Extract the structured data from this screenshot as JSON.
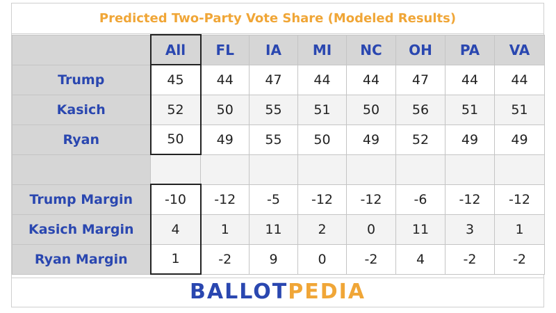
{
  "chart_data": {
    "type": "table",
    "title": "Predicted Two-Party Vote Share (Modeled Results)",
    "columns": [
      "All",
      "FL",
      "IA",
      "MI",
      "NC",
      "OH",
      "PA",
      "VA"
    ],
    "rows": [
      {
        "label": "Trump",
        "values": [
          "45",
          "44",
          "47",
          "44",
          "44",
          "47",
          "44",
          "44"
        ]
      },
      {
        "label": "Kasich",
        "values": [
          "52",
          "50",
          "55",
          "51",
          "50",
          "56",
          "51",
          "51"
        ]
      },
      {
        "label": "Ryan",
        "values": [
          "50",
          "49",
          "55",
          "50",
          "49",
          "52",
          "49",
          "49"
        ]
      },
      {
        "label": "",
        "values": [
          "",
          "",
          "",
          "",
          "",
          "",
          "",
          ""
        ]
      },
      {
        "label": "Trump Margin",
        "values": [
          "-10",
          "-12",
          "-5",
          "-12",
          "-12",
          "-6",
          "-12",
          "-12"
        ]
      },
      {
        "label": "Kasich Margin",
        "values": [
          "4",
          "1",
          "11",
          "2",
          "0",
          "11",
          "3",
          "1"
        ]
      },
      {
        "label": "Ryan Margin",
        "values": [
          "1",
          "-2",
          "9",
          "0",
          "-2",
          "4",
          "-2",
          "-2"
        ]
      }
    ]
  },
  "footer": {
    "logo_part1": "BALLOT",
    "logo_part2": "PEDIA"
  },
  "colors": {
    "title": "#f0a637",
    "header_text": "#2a47b0",
    "header_bg": "#d6d6d6"
  }
}
